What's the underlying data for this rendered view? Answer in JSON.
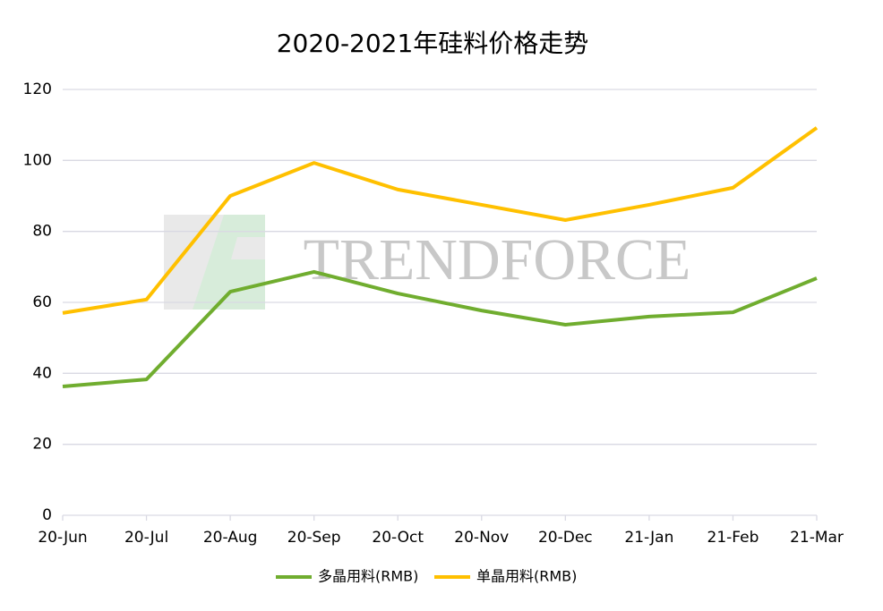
{
  "chart_data": {
    "type": "line",
    "title": "2020-2021年硅料价格走势",
    "watermark": "TRENDFORCE",
    "categories": [
      "20-Jun",
      "20-Jul",
      "20-Aug",
      "20-Sep",
      "20-Oct",
      "20-Nov",
      "20-Dec",
      "21-Jan",
      "21-Feb",
      "21-Mar"
    ],
    "series": [
      {
        "name": "多晶用料(RMB)",
        "color": "#70ad2f",
        "values": [
          36.3,
          38.3,
          63,
          68.6,
          62.5,
          57.7,
          53.7,
          56,
          57.2,
          66.8
        ]
      },
      {
        "name": "单晶用料(RMB)",
        "color": "#ffc000",
        "values": [
          57,
          60.8,
          90,
          99.3,
          91.8,
          87.5,
          83.2,
          87.5,
          92.3,
          109.2
        ]
      }
    ],
    "ylim": [
      0,
      120
    ],
    "yticks": [
      0,
      20,
      40,
      60,
      80,
      100,
      120
    ],
    "grid": true,
    "legend": "bottom"
  }
}
